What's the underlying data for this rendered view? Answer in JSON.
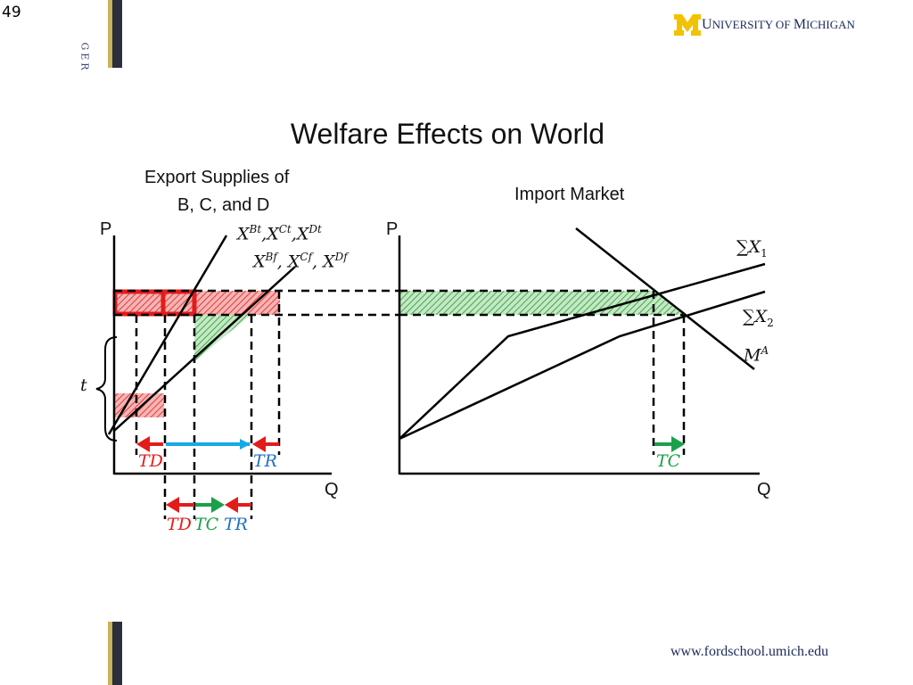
{
  "slide_number": "49",
  "side_label": "GER",
  "logo": {
    "m": "M",
    "text_big1": "U",
    "text1": "NIVERSITY OF ",
    "text_big2": "M",
    "text2": "ICHIGAN"
  },
  "website": "www.fordschool.umich.edu",
  "title": "Welfare Effects on World",
  "left_panel": {
    "heading_line1": "Export Supplies of",
    "heading_line2": "B, C, and D",
    "axis_p": "P",
    "axis_q": "Q",
    "curve_t": {
      "base": [
        "X",
        "X",
        "X"
      ],
      "sup": [
        "Bt",
        "Ct",
        "Dt"
      ]
    },
    "curve_f": {
      "base": [
        "X",
        "X",
        "X"
      ],
      "sup": [
        "Bf",
        "Cf",
        "Df"
      ]
    },
    "t_label": "t",
    "arrow_labels_top": {
      "td": "TD",
      "tr": "TR"
    },
    "arrow_labels_bottom": {
      "td": "TD",
      "tc": "TC",
      "tr": "TR"
    }
  },
  "right_panel": {
    "heading": "Import Market",
    "axis_p": "P",
    "axis_q": "Q",
    "sum_x1": {
      "sigma": "∑",
      "base": "X",
      "sub": "1"
    },
    "sum_x2": {
      "sigma": "∑",
      "base": "X",
      "sub": "2"
    },
    "ma": {
      "base": "M",
      "sup": "A"
    },
    "tc_label": "TC"
  },
  "colors": {
    "red": "#e31b1b",
    "green": "#1aa04a",
    "blue": "#17a9e6",
    "navy": "#1a2a5a",
    "maize": "#f2c200"
  },
  "icons": {
    "logo": "block-m-logo"
  }
}
